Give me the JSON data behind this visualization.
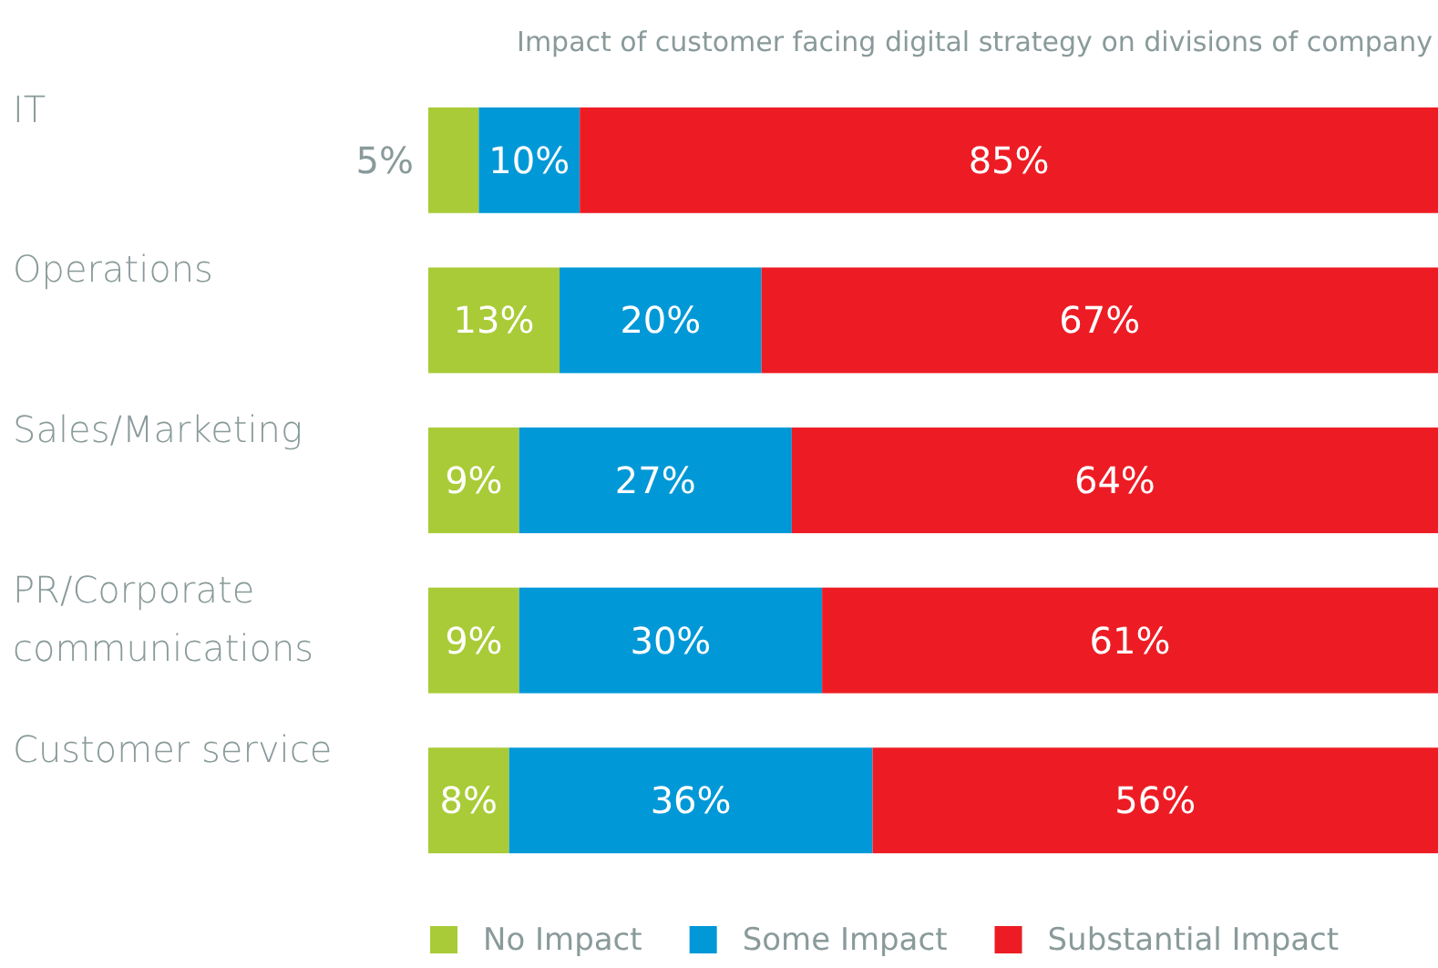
{
  "chart_data": {
    "type": "bar",
    "orientation": "horizontal",
    "stacked": true,
    "title": "Impact of customer facing digital strategy on divisions of company",
    "categories": [
      "IT",
      "Operations",
      "Sales/Marketing",
      "PR/Corporate communications",
      "Customer service"
    ],
    "xlim": [
      0,
      100
    ],
    "tick_labels": "y",
    "legend": "bottom",
    "series": [
      {
        "name": "No Impact",
        "color": "#a9cb37",
        "values": [
          5,
          13,
          9,
          9,
          8
        ],
        "value_labels": [
          "5%",
          "13%",
          "9%",
          "9%",
          "8%"
        ]
      },
      {
        "name": "Some Impact",
        "color": "#0098d7",
        "values": [
          10,
          20,
          27,
          30,
          36
        ],
        "value_labels": [
          "10%",
          "20%",
          "27%",
          "30%",
          "36%"
        ]
      },
      {
        "name": "Substantial Impact",
        "color": "#ed1c24",
        "values": [
          85,
          67,
          64,
          61,
          56
        ],
        "value_labels": [
          "85%",
          "67%",
          "64%",
          "61%",
          "56%"
        ]
      }
    ]
  }
}
